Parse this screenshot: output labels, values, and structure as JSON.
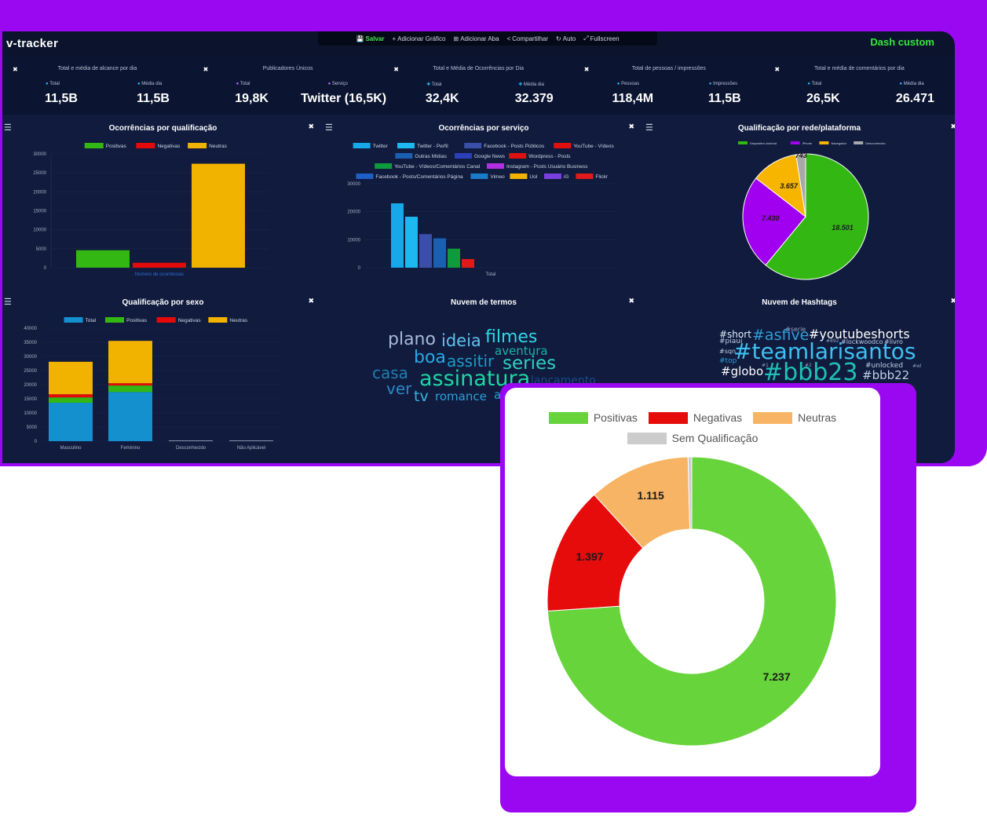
{
  "app": {
    "logo": "v-tracker",
    "dash_title": "Dash custom",
    "toolbar": [
      {
        "icon": "save-icon",
        "glyph": "💾",
        "label": "Salvar"
      },
      {
        "icon": "plus-icon",
        "glyph": "+",
        "label": "Adicionar Gráfico"
      },
      {
        "icon": "add-tab-icon",
        "glyph": "⊞",
        "label": "Adicionar Aba"
      },
      {
        "icon": "share-icon",
        "glyph": "<",
        "label": "Compartilhar"
      },
      {
        "icon": "refresh-icon",
        "glyph": "↻",
        "label": "Auto"
      },
      {
        "icon": "fullscreen-icon",
        "glyph": "⤢",
        "label": "Fullscreen"
      }
    ]
  },
  "kpis": [
    {
      "title": "Total e média de alcance por dia",
      "items": [
        {
          "label": "Total",
          "value": "11,5B",
          "icon": "chat-icon"
        },
        {
          "label": "Média dia",
          "value": "11,5B",
          "icon": "chat-icon"
        }
      ]
    },
    {
      "title": "Publicadores Únicos",
      "items": [
        {
          "label": "Total",
          "value": "19,8K",
          "icon": "user-icon"
        },
        {
          "label": "Serviço",
          "value": "Twitter (16,5K)",
          "icon": "user-icon"
        }
      ]
    },
    {
      "title": "Total e Média de Ocorrências por Dia",
      "items": [
        {
          "label": "Total",
          "value": "32,4K",
          "icon": "plus-icon"
        },
        {
          "label": "Média dia",
          "value": "32.379",
          "icon": "plus-icon"
        }
      ]
    },
    {
      "title": "Total de pessoas / impressões",
      "items": [
        {
          "label": "Pessoas",
          "value": "118,4M",
          "icon": "chat-icon"
        },
        {
          "label": "Impressões",
          "value": "11,5B",
          "icon": "chat-icon"
        }
      ]
    },
    {
      "title": "Total e média de comentários por dia",
      "items": [
        {
          "label": "Total",
          "value": "26,5K",
          "icon": "chat-icon"
        },
        {
          "label": "Média dia",
          "value": "26.471",
          "icon": "chat-icon"
        }
      ]
    }
  ],
  "panels": {
    "p1_title": "Ocorrências por qualificação",
    "p2_title": "Ocorrências por serviço",
    "p3_title": "Qualificação por rede/plataforma",
    "p4_title": "Qualificação por sexo",
    "p5_title": "Nuvem de termos",
    "p6_title": "Nuvem de Hashtags"
  },
  "chart_data": [
    {
      "type": "bar",
      "title": "Ocorrências por qualificação",
      "xlabel": "Número de ocorrências",
      "ylim": [
        0,
        30000
      ],
      "yticks": [
        "30000",
        "25000",
        "20000",
        "15000",
        "10000",
        "5000",
        "0"
      ],
      "series": [
        {
          "name": "Positivas",
          "values": [
            4600
          ],
          "color": "#33b813"
        },
        {
          "name": "Negativas",
          "values": [
            1300
          ],
          "color": "#e50a0a"
        },
        {
          "name": "Neutras",
          "values": [
            27400
          ],
          "color": "#f2b200"
        }
      ]
    },
    {
      "type": "bar",
      "title": "Ocorrências por serviço",
      "xlabel": "Total",
      "ylim": [
        0,
        30000
      ],
      "yticks": [
        "30000",
        "20000",
        "10000",
        "0"
      ],
      "series": [
        {
          "name": "Twitter",
          "values": [
            23000
          ],
          "color": "#16a8e8"
        },
        {
          "name": "Twitter - Perfil",
          "values": [
            18200
          ],
          "color": "#1eb8f0"
        },
        {
          "name": "Facebook - Posts Públicos",
          "values": [
            12000
          ],
          "color": "#3a4fa8"
        },
        {
          "name": "YouTube - Vídeos",
          "values": [
            0
          ],
          "color": "#e0100f"
        },
        {
          "name": "Outras Mídias",
          "values": [
            10500
          ],
          "color": "#1b5fb0"
        },
        {
          "name": "Google News",
          "values": [
            0
          ],
          "color": "#2a3fb8"
        },
        {
          "name": "Wordpress - Posts",
          "values": [
            0
          ],
          "color": "#dd1111"
        },
        {
          "name": "YouTube - Vídeos/Comentários Canal",
          "values": [
            6800
          ],
          "color": "#0f9a3e"
        },
        {
          "name": "Instagram - Posts Usuário Business",
          "values": [
            3100
          ],
          "color": "#b02fe0"
        },
        {
          "name": "Facebook - Posts/Comentários Página",
          "values": [
            0
          ],
          "color": "#1d5fc2"
        },
        {
          "name": "Vimeo",
          "values": [
            0
          ],
          "color": "#1a7cc9"
        },
        {
          "name": "Uol",
          "values": [
            0
          ],
          "color": "#f2b200"
        },
        {
          "name": "iG",
          "values": [
            0
          ],
          "color": "#7a3fe0"
        },
        {
          "name": "Flickr",
          "values": [
            0
          ],
          "color": "#e01a1a"
        }
      ],
      "bars_color_order": [
        "#16a8e8",
        "#1eb8f0",
        "#3a4fa8",
        "#1b5fb0",
        "#0f9a3e",
        "#e01a1a"
      ],
      "bars_values": [
        23000,
        18200,
        12000,
        10500,
        6800,
        3100
      ]
    },
    {
      "type": "pie",
      "title": "Qualificação por rede/plataforma",
      "labels": [
        "Dispositivo Android",
        "iPhone",
        "Navegador",
        "Desconhecido"
      ],
      "values": [
        18501,
        7430,
        3657,
        743
      ],
      "data_labels": [
        "18.501",
        "7.430",
        "3.657",
        "743"
      ],
      "colors": [
        "#33b813",
        "#a000ef",
        "#f7b500",
        "#a8a8a8"
      ]
    },
    {
      "type": "bar",
      "title": "Qualificação por sexo",
      "categories": [
        "Masculino",
        "Feminino",
        "Desconhecido",
        "Não Aplicável"
      ],
      "ylim": [
        0,
        40000
      ],
      "yticks": [
        "40000",
        "35000",
        "30000",
        "25000",
        "20000",
        "15000",
        "10000",
        "5000",
        "0"
      ],
      "series": [
        {
          "name": "Total",
          "values": [
            13600,
            17400,
            200,
            200
          ],
          "color": "#1490cf"
        },
        {
          "name": "Positivas",
          "values": [
            1900,
            2300,
            0,
            0
          ],
          "color": "#33b813"
        },
        {
          "name": "Negativas",
          "values": [
            1100,
            800,
            0,
            0
          ],
          "color": "#e50a0a"
        },
        {
          "name": "Neutras",
          "values": [
            11500,
            15000,
            0,
            0
          ],
          "color": "#f2b200"
        }
      ]
    },
    {
      "type": "pie",
      "title": "",
      "labels": [
        "Positivas",
        "Negativas",
        "Neutras",
        "Sem Qualificação"
      ],
      "values": [
        7237,
        1397,
        1115,
        40
      ],
      "data_labels": [
        "7.237",
        "1.397",
        "1.115",
        ""
      ],
      "colors": [
        "#66d43a",
        "#e60c0c",
        "#f7b465",
        "#cccccc"
      ]
    }
  ],
  "word_cloud": [
    {
      "t": "plano",
      "c": "#a9b9d9",
      "s": 22
    },
    {
      "t": "ideia",
      "c": "#5fc3ee",
      "s": 21
    },
    {
      "t": "filmes",
      "c": "#2fd8e8",
      "s": 22
    },
    {
      "t": "aventura",
      "c": "#1fb0a8",
      "s": 15
    },
    {
      "t": "boa",
      "c": "#2aaae6",
      "s": 22
    },
    {
      "t": "assitir",
      "c": "#1b9dc8",
      "s": 20
    },
    {
      "t": "series",
      "c": "#2fd0c0",
      "s": 23
    },
    {
      "t": "casa",
      "c": "#1f7fb0",
      "s": 20
    },
    {
      "t": "assinatura",
      "c": "#1ed6a4",
      "s": 27
    },
    {
      "t": "lancamento",
      "c": "#184a8a",
      "s": 14
    },
    {
      "t": "ver",
      "c": "#2b88c8",
      "s": 20
    },
    {
      "t": "tv",
      "c": "#37b3e0",
      "s": 19
    },
    {
      "t": "romance",
      "c": "#2f9fd8",
      "s": 15
    },
    {
      "t": "a",
      "c": "#2f9fd8",
      "s": 15
    }
  ],
  "hashtag_cloud": [
    {
      "t": "#short",
      "c": "#e0f0ff",
      "s": 12
    },
    {
      "t": "#asfive",
      "c": "#2f9fd8",
      "s": 19
    },
    {
      "t": "#serie",
      "c": "#8fa0c0",
      "s": 8
    },
    {
      "t": "#youtubeshorts",
      "c": "#ffffff",
      "s": 16
    },
    {
      "t": "#piaui",
      "c": "#c0d0e8",
      "s": 9
    },
    {
      "t": "#892",
      "c": "#8fa0c0",
      "s": 6
    },
    {
      "t": "#lockwoodco",
      "c": "#c0d0e8",
      "s": 8
    },
    {
      "t": "#livro",
      "c": "#c0d0e8",
      "s": 8
    },
    {
      "t": "#sqn",
      "c": "#c0d0e8",
      "s": 8
    },
    {
      "t": "#teamlarisantos",
      "c": "#3fc0f0",
      "s": 28
    },
    {
      "t": "#top",
      "c": "#2f9fd8",
      "s": 9
    },
    {
      "t": "#unlocked",
      "c": "#c0d0e8",
      "s": 9
    },
    {
      "t": "#globo",
      "c": "#ffffff",
      "s": 15
    },
    {
      "t": "#1",
      "c": "#8fa0c0",
      "s": 6
    },
    {
      "t": "#2",
      "c": "#8fa0c0",
      "s": 6
    },
    {
      "t": "#bbb23",
      "c": "#1fc0b8",
      "s": 30
    },
    {
      "t": "#bbb22",
      "c": "#c0d0e8",
      "s": 15
    },
    {
      "t": "#wl",
      "c": "#8fa0c0",
      "s": 6
    }
  ]
}
